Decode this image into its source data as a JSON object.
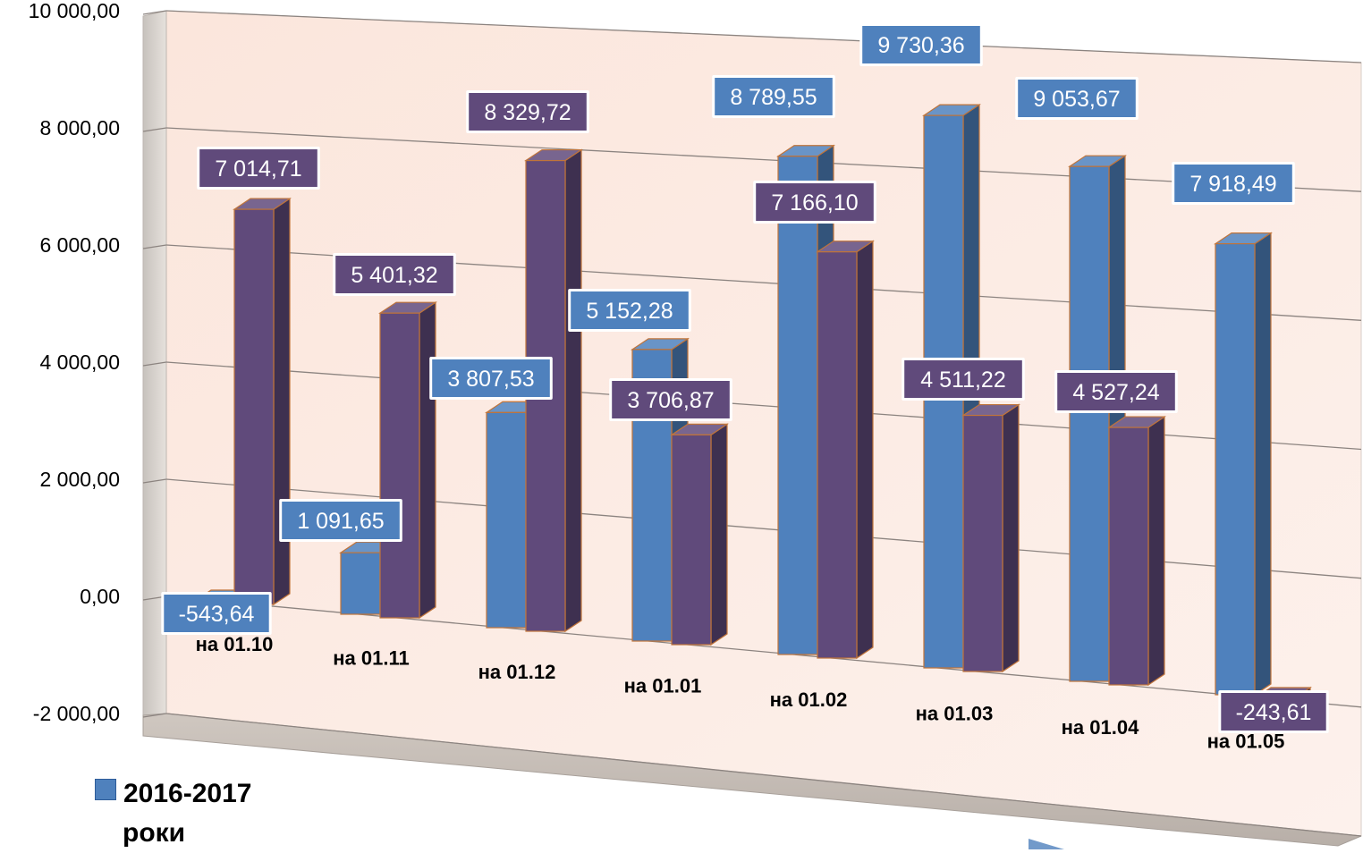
{
  "chart_data": {
    "type": "bar",
    "categories": [
      "на 01.10",
      "на 01.11",
      "на 01.12",
      "на 01.01",
      "на 01.02",
      "на 01.03",
      "на 01.04",
      "на 01.05"
    ],
    "y_ticks": [
      "10 000,00",
      "8 000,00",
      "6 000,00",
      "4 000,00",
      "2 000,00",
      "0,00",
      "-2 000,00"
    ],
    "ylim": [
      -2000,
      10000
    ],
    "grid": true,
    "legend_position": "bottom-left",
    "series": [
      {
        "name": "2016-2017 роки",
        "color": "#4f81bd",
        "values": [
          -543.64,
          1091.65,
          3807.53,
          5152.28,
          8789.55,
          9730.36,
          9053.67,
          7918.49
        ],
        "labels": [
          "-543,64",
          "1 091,65",
          "3 807,53",
          "5 152,28",
          "8 789,55",
          "9 730,36",
          "9 053,67",
          "7 918,49"
        ]
      },
      {
        "color": "#604a7b",
        "values": [
          7014.71,
          5401.32,
          8329.72,
          3706.87,
          7166.1,
          4511.22,
          4527.24,
          -243.61
        ],
        "labels": [
          "7 014,71",
          "5 401,32",
          "8 329,72",
          "3 706,87",
          "7 166,10",
          "4 511,22",
          "4 527,24",
          "-243,61"
        ]
      }
    ]
  },
  "legend": {
    "line1": "2016-2017",
    "line2": "роки"
  }
}
